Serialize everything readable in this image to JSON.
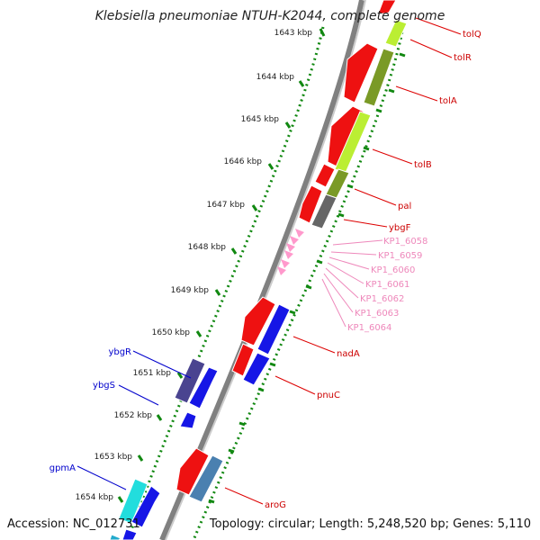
{
  "title": "Klebsiella pneumoniae NTUH-K2044, complete genome",
  "accession": "Accession: NC_012731",
  "topology": "Topology: circular; Length: 5,248,520 bp; Genes: 5,110",
  "colors": {
    "red": "#ee1111",
    "blue": "#1616e6",
    "navy": "#2222cc",
    "pink": "#ff99cc",
    "lime": "#bbee33",
    "olive": "#7a9a26",
    "gray": "#666666",
    "steel": "#4a80b0",
    "cyan": "#22dddd",
    "slate": "#4a4490",
    "kbpDot": "#118811"
  },
  "kbp_labels": [
    "1643 kbp",
    "1644 kbp",
    "1645 kbp",
    "1646 kbp",
    "1647 kbp",
    "1648 kbp",
    "1649 kbp",
    "1650 kbp",
    "1651 kbp",
    "1652 kbp",
    "1653 kbp",
    "1654 kbp"
  ],
  "genes_right": [
    {
      "name": "tolQ",
      "color": "#cc0000"
    },
    {
      "name": "tolR",
      "color": "#cc0000"
    },
    {
      "name": "tolA",
      "color": "#cc0000"
    },
    {
      "name": "tolB",
      "color": "#cc0000"
    },
    {
      "name": "pal",
      "color": "#cc0000"
    },
    {
      "name": "ybgF",
      "color": "#cc0000"
    },
    {
      "name": "KP1_6058",
      "color": "#ee88bb"
    },
    {
      "name": "KP1_6059",
      "color": "#ee88bb"
    },
    {
      "name": "KP1_6060",
      "color": "#ee88bb"
    },
    {
      "name": "KP1_6061",
      "color": "#ee88bb"
    },
    {
      "name": "KP1_6062",
      "color": "#ee88bb"
    },
    {
      "name": "KP1_6063",
      "color": "#ee88bb"
    },
    {
      "name": "KP1_6064",
      "color": "#ee88bb"
    },
    {
      "name": "nadA",
      "color": "#cc0000"
    },
    {
      "name": "pnuC",
      "color": "#cc0000"
    },
    {
      "name": "aroG",
      "color": "#cc0000"
    }
  ],
  "genes_left": [
    {
      "name": "ybgR",
      "color": "#0000cc"
    },
    {
      "name": "ybgS",
      "color": "#0000cc"
    },
    {
      "name": "gpmA",
      "color": "#0000cc"
    }
  ]
}
